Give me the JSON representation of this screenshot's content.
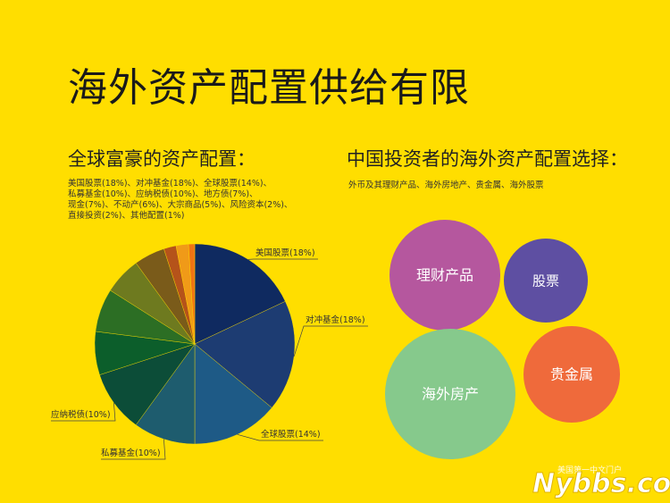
{
  "title": "海外资产配置供给有限",
  "left": {
    "heading": "全球富豪的资产配置：",
    "list_lines": [
      "美国股票(18%)、对冲基金(18%)、全球股票(14%)、",
      "私募基金(10%)、应纳税债(10%)、地方债(7%)、",
      "现金(7%)、不动产(6%)、大宗商品(5%)、风险资本(2%)、",
      "直接投资(2%)、其他配置(1%)"
    ]
  },
  "right": {
    "heading": "中国投资者的海外资产配置选择：",
    "subtitle": "外币及其理财产品、海外房地产、贵金属、海外股票",
    "bubbles": [
      {
        "label": "理财产品",
        "color": "#B5579E"
      },
      {
        "label": "股票",
        "color": "#5E4FA2"
      },
      {
        "label": "海外房产",
        "color": "#86C98C"
      },
      {
        "label": "贵金属",
        "color": "#EF6A3B"
      }
    ]
  },
  "chart_data": {
    "type": "pie",
    "categories": [
      "美国股票",
      "对冲基金",
      "全球股票",
      "私募基金",
      "应纳税债",
      "地方债",
      "现金",
      "不动产",
      "大宗商品",
      "风险资本",
      "直接投资",
      "其他配置"
    ],
    "values": [
      18,
      18,
      14,
      10,
      10,
      7,
      7,
      6,
      5,
      2,
      2,
      1
    ],
    "colors": [
      "#0F2A60",
      "#1D3C72",
      "#1E5A86",
      "#1E5C6E",
      "#0C4D38",
      "#0C5E2B",
      "#2C6E24",
      "#6E7A1F",
      "#7A5B1A",
      "#B5531A",
      "#F09A18",
      "#EF7414"
    ],
    "callouts": [
      {
        "text": "美国股票(18%)"
      },
      {
        "text": "对冲基金(18%)"
      },
      {
        "text": "全球股票(14%)"
      },
      {
        "text": "私募基金(10%)"
      },
      {
        "text": "应纳税债(10%)"
      }
    ]
  },
  "watermark": {
    "small": "美国第一中文门户",
    "big": "Nybbs.com"
  }
}
